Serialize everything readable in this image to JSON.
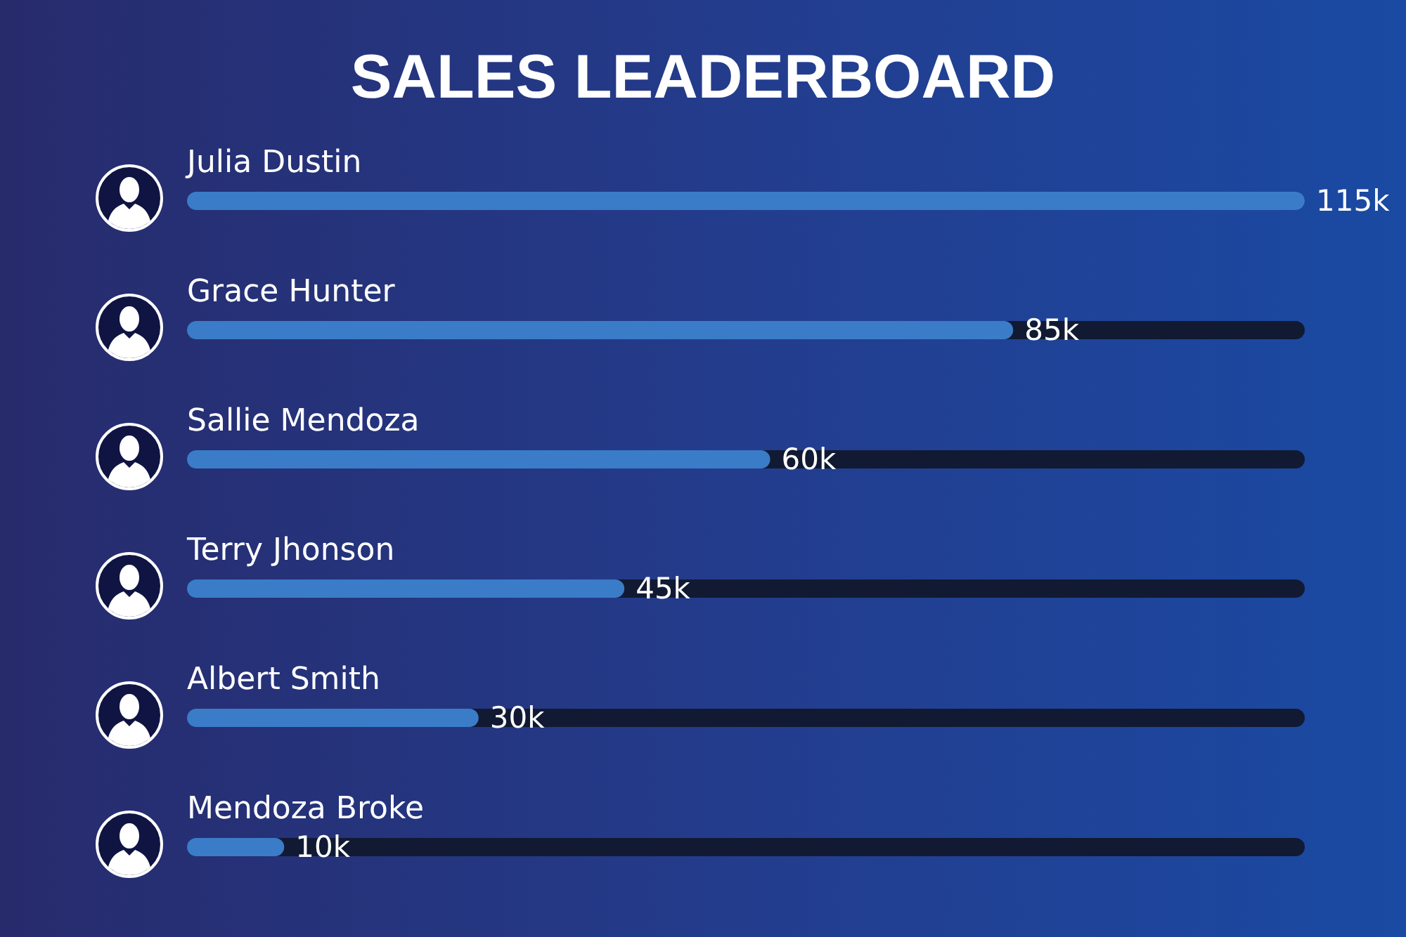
{
  "chart_data": {
    "type": "bar",
    "orientation": "horizontal",
    "title": "SALES LEADERBOARD",
    "categories": [
      "Julia Dustin",
      "Grace Hunter",
      "Sallie Mendoza",
      "Terry Jhonson",
      "Albert Smith",
      "Mendoza Broke"
    ],
    "values": [
      115,
      85,
      60,
      45,
      30,
      10
    ],
    "value_labels": [
      "115k",
      "85k",
      "60k",
      "45k",
      "30k",
      "10k"
    ],
    "color": "#3a7cc8"
  }
}
